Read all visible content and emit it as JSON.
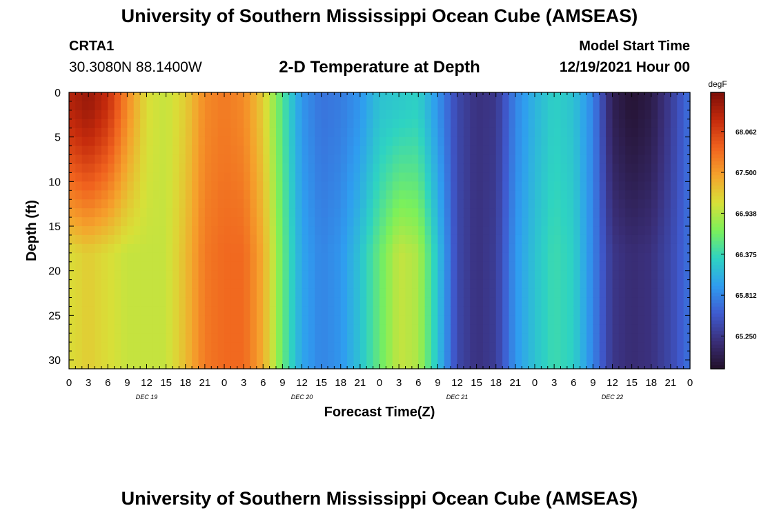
{
  "header": {
    "title": "University of Southern Mississippi Ocean Cube (AMSEAS)",
    "station_id": "CRTA1",
    "coordinates": "30.3080N  88.1400W",
    "subtitle": "2-D Temperature at Depth",
    "model_start_label": "Model Start Time",
    "model_start_value": "12/19/2021 Hour 00"
  },
  "footer": {
    "title": "University of Southern Mississippi Ocean Cube (AMSEAS)"
  },
  "chart_data": {
    "type": "heatmap",
    "title": "2-D Temperature at Depth",
    "xlabel": "Forecast Time(Z)",
    "ylabel": "Depth (ft)",
    "x_hours": [
      0,
      96
    ],
    "xlim": [
      0,
      96
    ],
    "ylim": [
      0,
      31
    ],
    "x_tick_labels": [
      "0",
      "3",
      "6",
      "9",
      "12",
      "15",
      "18",
      "21",
      "0",
      "3",
      "6",
      "9",
      "12",
      "15",
      "18",
      "21",
      "0",
      "3",
      "6",
      "9",
      "12",
      "15",
      "18",
      "21",
      "0",
      "3",
      "6",
      "9",
      "12",
      "15",
      "18",
      "21",
      "0"
    ],
    "y_ticks": [
      0,
      5,
      10,
      15,
      20,
      25,
      30
    ],
    "day_labels": [
      {
        "hour": 12,
        "text": "DEC 19"
      },
      {
        "hour": 36,
        "text": "DEC 20"
      },
      {
        "hour": 60,
        "text": "DEC 21"
      },
      {
        "hour": 84,
        "text": "DEC 22"
      }
    ],
    "colorbar": {
      "unit": "degF",
      "range": [
        64.8,
        68.6
      ],
      "ticks": [
        "68.062",
        "67.500",
        "66.938",
        "66.375",
        "65.812",
        "65.250"
      ],
      "tick_values": [
        68.062,
        67.5,
        66.938,
        66.375,
        65.812,
        65.25
      ],
      "colors": [
        "#23102a",
        "#3a2f7a",
        "#3f5bd0",
        "#2f9df0",
        "#2ed3c2",
        "#7cf05a",
        "#d8e038",
        "#f5a22c",
        "#f0621e",
        "#c42a0c",
        "#7c0e08"
      ]
    },
    "surface_temp_degF": {
      "hours": [
        0,
        3,
        6,
        9,
        12,
        15,
        18,
        21,
        24,
        27,
        30,
        33,
        36,
        39,
        42,
        45,
        48,
        51,
        54,
        57,
        60,
        63,
        66,
        69,
        72,
        75,
        78,
        81,
        84,
        87,
        90,
        93,
        96
      ],
      "values": [
        68.3,
        68.45,
        68.2,
        67.6,
        67.1,
        67.0,
        67.2,
        67.6,
        67.7,
        67.6,
        67.2,
        66.5,
        65.9,
        65.7,
        65.75,
        65.9,
        66.2,
        66.25,
        66.3,
        65.9,
        65.4,
        65.2,
        65.25,
        65.8,
        66.1,
        66.3,
        66.2,
        65.8,
        65.0,
        64.85,
        64.95,
        65.3,
        65.7
      ]
    },
    "bottom_temp_degF": {
      "hours": [
        0,
        3,
        6,
        9,
        12,
        15,
        18,
        21,
        24,
        27,
        30,
        33,
        36,
        39,
        42,
        45,
        48,
        51,
        54,
        57,
        60,
        63,
        66,
        69,
        72,
        75,
        78,
        81,
        84,
        87,
        90,
        93,
        96
      ],
      "values": [
        67.1,
        67.2,
        67.1,
        67.0,
        67.0,
        67.0,
        67.3,
        67.7,
        67.8,
        67.8,
        67.4,
        66.6,
        66.0,
        65.8,
        65.9,
        66.2,
        66.6,
        67.0,
        66.9,
        66.2,
        65.4,
        65.2,
        65.3,
        65.9,
        66.2,
        66.4,
        66.3,
        65.8,
        65.25,
        65.15,
        65.2,
        65.4,
        65.7
      ]
    }
  }
}
